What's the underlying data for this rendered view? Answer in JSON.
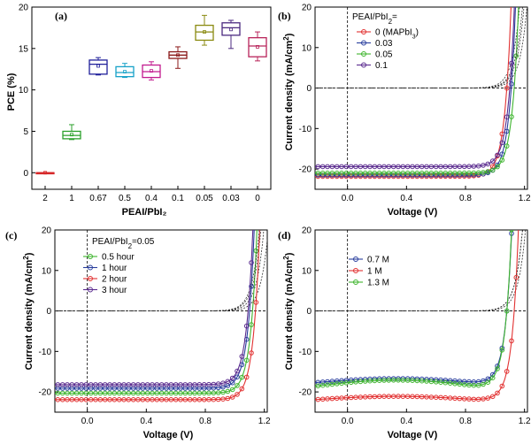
{
  "chart_data": [
    {
      "id": "a",
      "type": "box",
      "panel_label": "(a)",
      "ylabel": "PCE (%)",
      "xlabel": "PEAI/PbI₂",
      "ylim": [
        -2,
        20
      ],
      "yticks": [
        "0",
        "5",
        "10",
        "15",
        "20"
      ],
      "ytick_values": [
        0,
        5,
        10,
        15,
        20
      ],
      "categories": [
        "2",
        "1",
        "0.67",
        "0.5",
        "0.4",
        "0.1",
        "0.05",
        "0.03",
        "0"
      ],
      "box_colors": [
        "#d62728",
        "#2ca02c",
        "#1f1f9a",
        "#17a2c8",
        "#c21b8f",
        "#8b1a1a",
        "#8a8a10",
        "#4b2a80",
        "#b8245a"
      ],
      "boxes": [
        {
          "min": 0.0,
          "q1": 0.0,
          "median": 0.0,
          "q3": 0.0,
          "max": 0.0,
          "mean": 0.0
        },
        {
          "min": 4.0,
          "q1": 4.1,
          "median": 4.5,
          "q3": 5.0,
          "max": 5.8,
          "mean": 4.6
        },
        {
          "min": 11.8,
          "q1": 11.9,
          "median": 13.1,
          "q3": 13.6,
          "max": 13.9,
          "mean": 12.9
        },
        {
          "min": 11.5,
          "q1": 11.6,
          "median": 12.1,
          "q3": 12.8,
          "max": 13.2,
          "mean": 12.2
        },
        {
          "min": 11.2,
          "q1": 11.5,
          "median": 12.2,
          "q3": 13.0,
          "max": 13.4,
          "mean": 12.3
        },
        {
          "min": 12.6,
          "q1": 13.8,
          "median": 14.2,
          "q3": 14.6,
          "max": 15.2,
          "mean": 14.2
        },
        {
          "min": 15.4,
          "q1": 16.0,
          "median": 17.0,
          "q3": 17.8,
          "max": 19.0,
          "mean": 17.0
        },
        {
          "min": 15.0,
          "q1": 16.6,
          "median": 17.5,
          "q3": 18.1,
          "max": 18.4,
          "mean": 17.3
        },
        {
          "min": 13.5,
          "q1": 14.0,
          "median": 15.3,
          "q3": 16.3,
          "max": 17.0,
          "mean": 15.2
        }
      ]
    },
    {
      "id": "b",
      "type": "line",
      "panel_label": "(b)",
      "xlabel": "Voltage (V)",
      "ylabel": "Current density (mA/cm²)",
      "xlim": [
        -0.22,
        1.22
      ],
      "ylim": [
        -25,
        20
      ],
      "xticks": [
        "0.0",
        "0.4",
        "0.8",
        "1.2"
      ],
      "xtick_values": [
        0.0,
        0.4,
        0.8,
        1.2
      ],
      "yticks": [
        "20",
        "10",
        "0",
        "-10",
        "-20"
      ],
      "ytick_values": [
        20,
        10,
        0,
        -10,
        -20
      ],
      "legend_title": "PEAI/PbI₂=",
      "series": [
        {
          "name": "0 (MAPbI₃)",
          "color": "#e23232",
          "jsc": 21.8,
          "voc": 1.08,
          "n": 1.7,
          "dark_voc": 1.02
        },
        {
          "name": "0.03",
          "color": "#2a3f9e",
          "jsc": 21.5,
          "voc": 1.11,
          "n": 1.7,
          "dark_voc": 1.05
        },
        {
          "name": "0.05",
          "color": "#3fb52f",
          "jsc": 21.0,
          "voc": 1.13,
          "n": 1.7,
          "dark_voc": 1.07
        },
        {
          "name": "0.1",
          "color": "#5b2c8f",
          "jsc": 19.4,
          "voc": 1.1,
          "n": 1.7,
          "dark_voc": 1.04
        }
      ]
    },
    {
      "id": "c",
      "type": "line",
      "panel_label": "(c)",
      "xlabel": "Voltage (V)",
      "ylabel": "Current density (mA/cm²)",
      "xlim": [
        -0.22,
        1.22
      ],
      "ylim": [
        -25,
        20
      ],
      "xticks": [
        "0.0",
        "0.4",
        "0.8",
        "1.2"
      ],
      "xtick_values": [
        0.0,
        0.4,
        0.8,
        1.2
      ],
      "yticks": [
        "20",
        "10",
        "0",
        "-10",
        "-20"
      ],
      "ytick_values": [
        20,
        10,
        0,
        -10,
        -20
      ],
      "legend_title": "PEAI/PbI₂=0.05",
      "series": [
        {
          "name": "0.5 hour",
          "color": "#3fb52f",
          "jsc": 20.3,
          "voc": 1.12,
          "n": 1.7,
          "dark_voc": 1.05
        },
        {
          "name": "1 hour",
          "color": "#2a3f9e",
          "jsc": 19.1,
          "voc": 1.1,
          "n": 1.7,
          "dark_voc": 1.03
        },
        {
          "name": "2 hour",
          "color": "#e23232",
          "jsc": 21.9,
          "voc": 1.14,
          "n": 1.7,
          "dark_voc": 1.08
        },
        {
          "name": "3 hour",
          "color": "#5b2c8f",
          "jsc": 18.2,
          "voc": 1.09,
          "n": 1.7,
          "dark_voc": 1.02
        }
      ]
    },
    {
      "id": "d",
      "type": "line",
      "panel_label": "(d)",
      "xlabel": "Voltage (V)",
      "ylabel": "Current density (mA/cm²)",
      "xlim": [
        -0.22,
        1.22
      ],
      "ylim": [
        -25,
        20
      ],
      "xticks": [
        "0.0",
        "0.4",
        "0.8",
        "1.2"
      ],
      "xtick_values": [
        0.0,
        0.4,
        0.8,
        1.2
      ],
      "yticks": [
        "20",
        "10",
        "0",
        "-10",
        "-20"
      ],
      "ytick_values": [
        20,
        10,
        0,
        -10,
        -20
      ],
      "legend_title": "",
      "series": [
        {
          "name": "0.7 M",
          "color": "#2a3f9e",
          "jsc": 17.7,
          "voc": 1.08,
          "n": 1.7,
          "dark_voc": 1.04,
          "sag": 1.0
        },
        {
          "name": "1 M",
          "color": "#e23232",
          "jsc": 21.9,
          "voc": 1.13,
          "n": 1.7,
          "dark_voc": 1.06,
          "sag": 0.8
        },
        {
          "name": "1.3 M",
          "color": "#3fb52f",
          "jsc": 18.6,
          "voc": 1.08,
          "n": 1.7,
          "dark_voc": 1.04,
          "sag": 1.5
        }
      ]
    }
  ]
}
